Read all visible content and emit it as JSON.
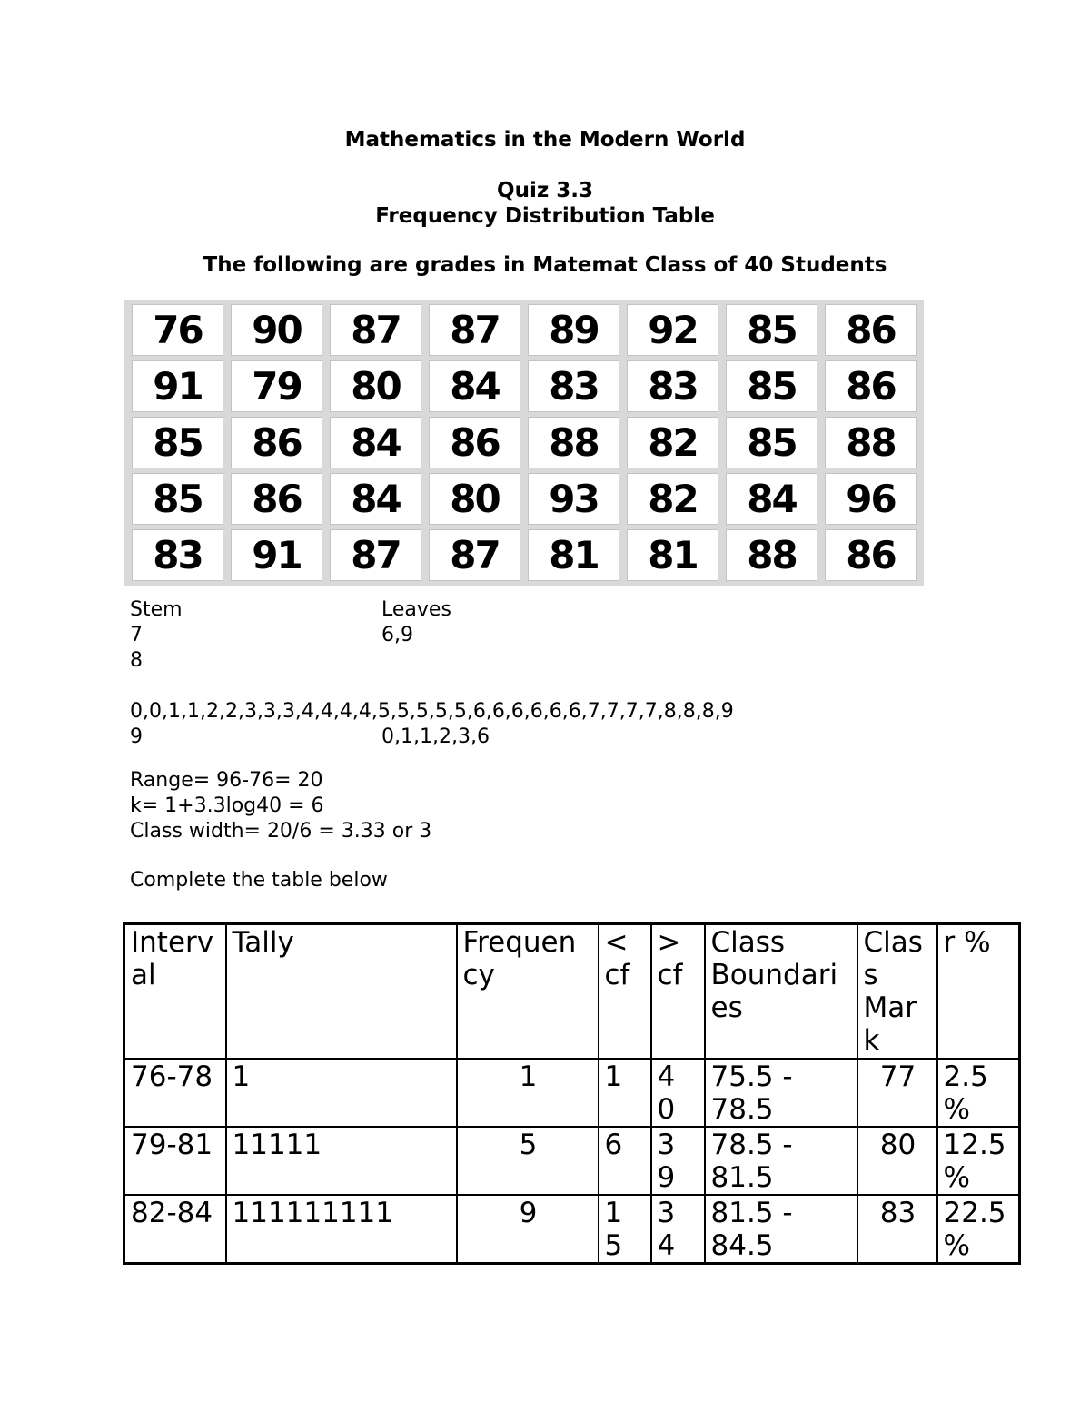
{
  "header": {
    "title": "Mathematics in the Modern World",
    "quiz_label": "Quiz 3.3",
    "subtitle": "Frequency Distribution Table",
    "intro": "The following are grades in Matemat Class of 40 Students"
  },
  "grades_grid": {
    "rows": [
      [
        "76",
        "90",
        "87",
        "87",
        "89",
        "92",
        "85",
        "86"
      ],
      [
        "91",
        "79",
        "80",
        "84",
        "83",
        "83",
        "85",
        "86"
      ],
      [
        "85",
        "86",
        "84",
        "86",
        "88",
        "82",
        "85",
        "88"
      ],
      [
        "85",
        "86",
        "84",
        "80",
        "93",
        "82",
        "84",
        "96"
      ],
      [
        "83",
        "91",
        "87",
        "87",
        "81",
        "81",
        "88",
        "86"
      ]
    ]
  },
  "stem_leaf": {
    "lines": [
      [
        "Stem",
        "Leaves"
      ],
      [
        "7",
        "6,9"
      ],
      [
        "8",
        ""
      ],
      [
        "",
        ""
      ],
      [
        "0,0,1,1,2,2,3,3,3,4,4,4,4,5,5,5,5,5,6,6,6,6,6,6,7,7,7,7,8,8,8,9"
      ],
      [
        "9",
        "0,1,1,2,3,6"
      ]
    ]
  },
  "calculations": {
    "lines": [
      "Range= 96-76= 20",
      "k= 1+3.3log40 = 6",
      "Class width= 20/6 = 3.33 or 3"
    ]
  },
  "table_prompt": "Complete the table below",
  "freq_table": {
    "headers": [
      "Interv\nal",
      "Tally",
      "Frequen\ncy",
      "<\ncf",
      ">\ncf",
      "Class\nBoundari\nes",
      "Clas\ns\nMar\nk",
      "r %"
    ],
    "rows": [
      [
        "76-78",
        "1",
        "1",
        "1",
        "4\n0",
        "75.5 -\n78.5",
        "77",
        "2.5\n%"
      ],
      [
        "79-81",
        "11111",
        "5",
        "6",
        "3\n9",
        "78.5 -\n81.5",
        "80",
        "12.5\n%"
      ],
      [
        "82-84",
        "111111111",
        "9",
        "1\n5",
        "3\n4",
        "81.5 -\n84.5",
        "83",
        "22.5\n%"
      ]
    ]
  },
  "colors": {
    "text": "#000000",
    "grid_background": "#d9d9d9",
    "grid_cell_border": "#c3c3c3",
    "table_border": "#000000",
    "page_background": "#ffffff"
  }
}
